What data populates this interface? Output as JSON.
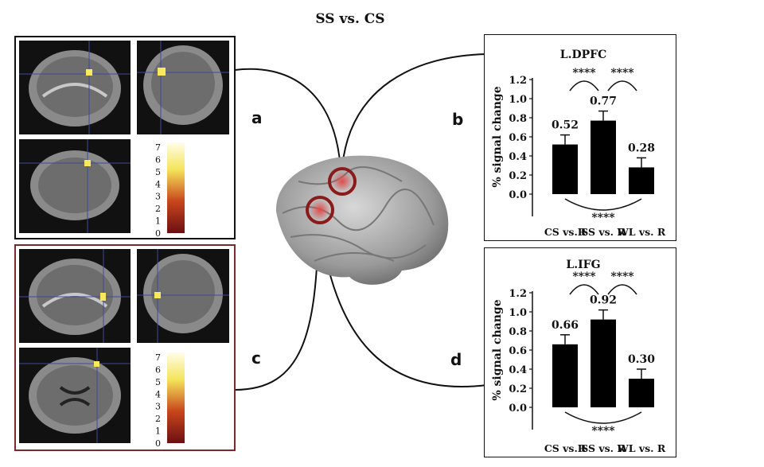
{
  "figure": {
    "title": "SS vs. CS",
    "panel_letters": [
      "a",
      "b",
      "c",
      "d"
    ],
    "colorbar_ticks": [
      "7",
      "6",
      "5",
      "4",
      "3",
      "2",
      "1",
      "0"
    ],
    "significance": "****"
  },
  "colors": {
    "bar": "#000000",
    "mri_box_top": "#111111",
    "mri_box_bottom": "#7a2a2a",
    "roi_circle": "#8b1a1a",
    "activation": "#f7e85c"
  },
  "chart_data": [
    {
      "type": "bar",
      "title": "L.DPFC",
      "ylabel": "% signal change",
      "categories": [
        "CS vs.R",
        "SS vs. R",
        "WL vs. R"
      ],
      "values": [
        0.52,
        0.77,
        0.28
      ],
      "value_labels": [
        "0.52",
        "0.77",
        "0.28"
      ],
      "errors": [
        0.1,
        0.1,
        0.1
      ],
      "ylim": [
        0,
        1.2
      ],
      "yticks": [
        "0.0",
        "0.2",
        "0.4",
        "0.6",
        "0.8",
        "1.0",
        "1.2"
      ],
      "significance": [
        "****",
        "****",
        "****"
      ]
    },
    {
      "type": "bar",
      "title": "L.IFG",
      "ylabel": "% signal change",
      "categories": [
        "CS vs.R",
        "SS vs. R",
        "WL vs. R"
      ],
      "values": [
        0.66,
        0.92,
        0.3
      ],
      "value_labels": [
        "0.66",
        "0.92",
        "0.30"
      ],
      "errors": [
        0.1,
        0.1,
        0.1
      ],
      "ylim": [
        0,
        1.2
      ],
      "yticks": [
        "0.0",
        "0.2",
        "0.4",
        "0.6",
        "0.8",
        "1.0",
        "1.2"
      ],
      "significance": [
        "****",
        "****",
        "****"
      ]
    }
  ]
}
